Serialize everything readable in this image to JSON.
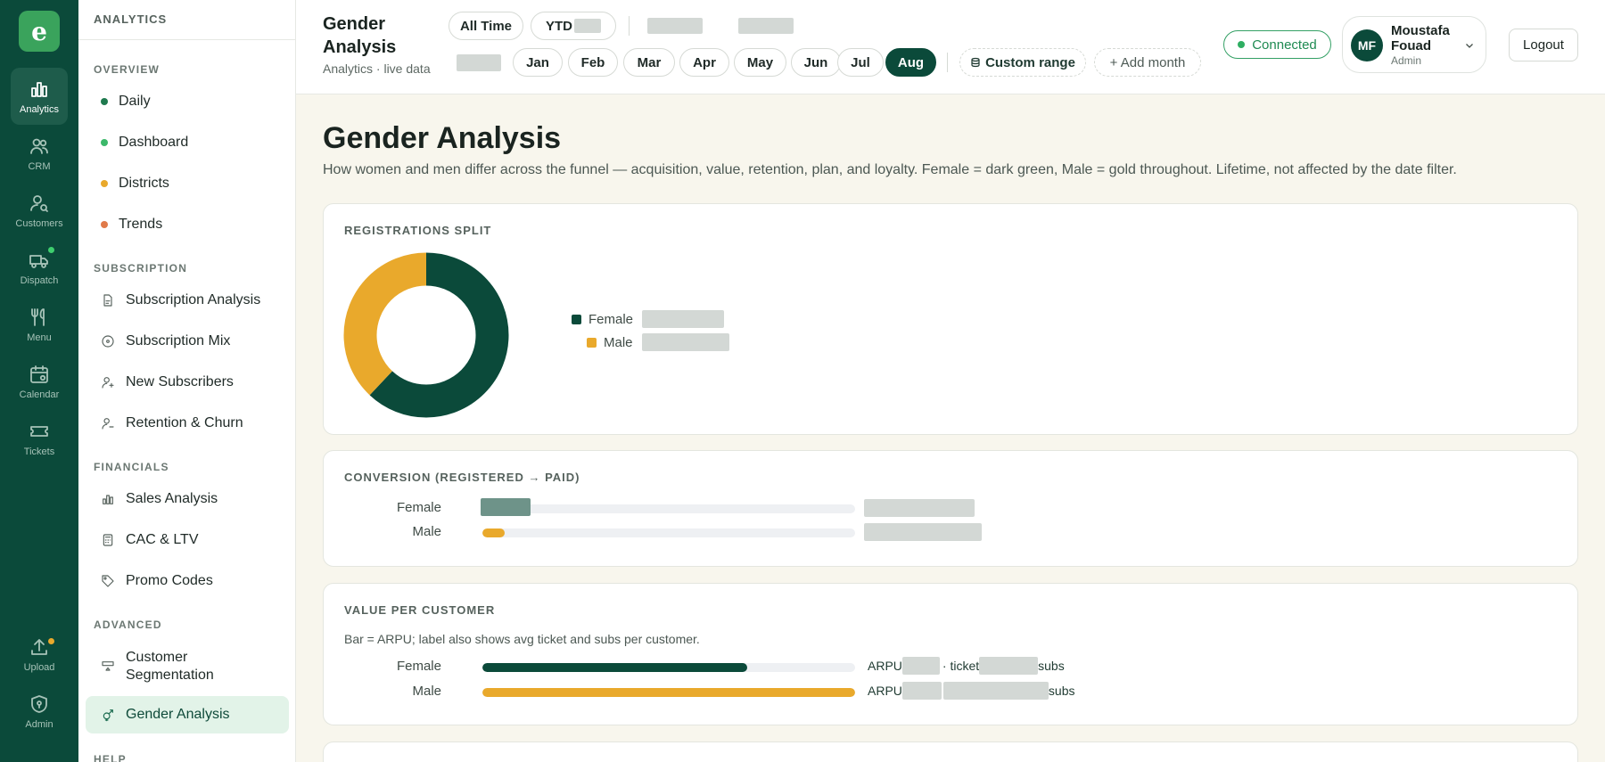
{
  "colors": {
    "female": "#0b4a3a",
    "male": "#e9a92c",
    "accent": "#0b4a3a"
  },
  "rail": {
    "logo_letter": "e",
    "items": [
      {
        "label": "Analytics",
        "icon": "bar-chart-icon"
      },
      {
        "label": "CRM",
        "icon": "users-icon"
      },
      {
        "label": "Customers",
        "icon": "user-search-icon"
      },
      {
        "label": "Dispatch",
        "icon": "truck-icon"
      },
      {
        "label": "Menu",
        "icon": "utensils-icon"
      },
      {
        "label": "Calendar",
        "icon": "calendar-icon"
      },
      {
        "label": "Tickets",
        "icon": "ticket-icon"
      },
      {
        "label": "Upload",
        "icon": "upload-icon"
      },
      {
        "label": "Admin",
        "icon": "shield-icon"
      }
    ]
  },
  "sidebar": {
    "header": "ANALYTICS",
    "sections": {
      "overview": "OVERVIEW",
      "subscription": "SUBSCRIPTION",
      "financials": "FINANCIALS",
      "advanced": "ADVANCED",
      "help": "HELP"
    },
    "items": {
      "daily": "Daily",
      "dashboard": "Dashboard",
      "districts": "Districts",
      "trends": "Trends",
      "subscription_analysis": "Subscription Analysis",
      "subscription_mix": "Subscription Mix",
      "new_subscribers": "New Subscribers",
      "retention_churn": "Retention & Churn",
      "sales_analysis": "Sales Analysis",
      "cac_ltv": "CAC & LTV",
      "promo_codes": "Promo Codes",
      "customer_segmentation": "Customer Segmentation",
      "gender_analysis": "Gender Analysis"
    }
  },
  "header": {
    "title": "Gender Analysis",
    "subtitle": "Analytics · live data",
    "all_time": "All Time",
    "ytd": "YTD",
    "months": [
      "Jan",
      "Feb",
      "Mar",
      "Apr",
      "May",
      "Jun",
      "Jul",
      "Aug"
    ],
    "active_month": "Aug",
    "custom_range": "Custom range",
    "add_month": "+ Add month",
    "connected": "Connected",
    "user_name": "Moustafa Fouad",
    "user_initials": "MF",
    "user_role": "Admin",
    "logout": "Logout"
  },
  "main": {
    "title": "Gender Analysis",
    "description": "How women and men differ across the funnel — acquisition, value, retention, plan, and loyalty. Female = dark green, Male = gold throughout. Lifetime, not affected by the date filter.",
    "registrations": {
      "title": "REGISTRATIONS SPLIT",
      "female_label": "Female",
      "male_label": "Male"
    },
    "conversion": {
      "title": "CONVERSION (REGISTERED → PAID)",
      "female_label": "Female",
      "male_label": "Male"
    },
    "value": {
      "title": "VALUE PER CUSTOMER",
      "note": "Bar = ARPU; label also shows avg ticket and subs per customer.",
      "female_label": "Female",
      "male_label": "Male",
      "arpu_prefix": "ARPU",
      "ticket_word": "· ticket",
      "subs_word": "subs"
    }
  },
  "chart_data": [
    {
      "type": "pie",
      "title": "REGISTRATIONS SPLIT",
      "categories": [
        "Female",
        "Male"
      ],
      "values": [
        62,
        38
      ],
      "colors": [
        "#0b4a3a",
        "#e9a92c"
      ],
      "legend": "right"
    },
    {
      "type": "bar",
      "title": "CONVERSION (REGISTERED → PAID)",
      "categories": [
        "Female",
        "Male"
      ],
      "values": [
        13,
        6
      ],
      "xlim": [
        0,
        100
      ]
    },
    {
      "type": "bar",
      "title": "VALUE PER CUSTOMER",
      "categories": [
        "Female",
        "Male"
      ],
      "values": [
        71,
        100
      ],
      "xlim": [
        0,
        100
      ]
    }
  ]
}
